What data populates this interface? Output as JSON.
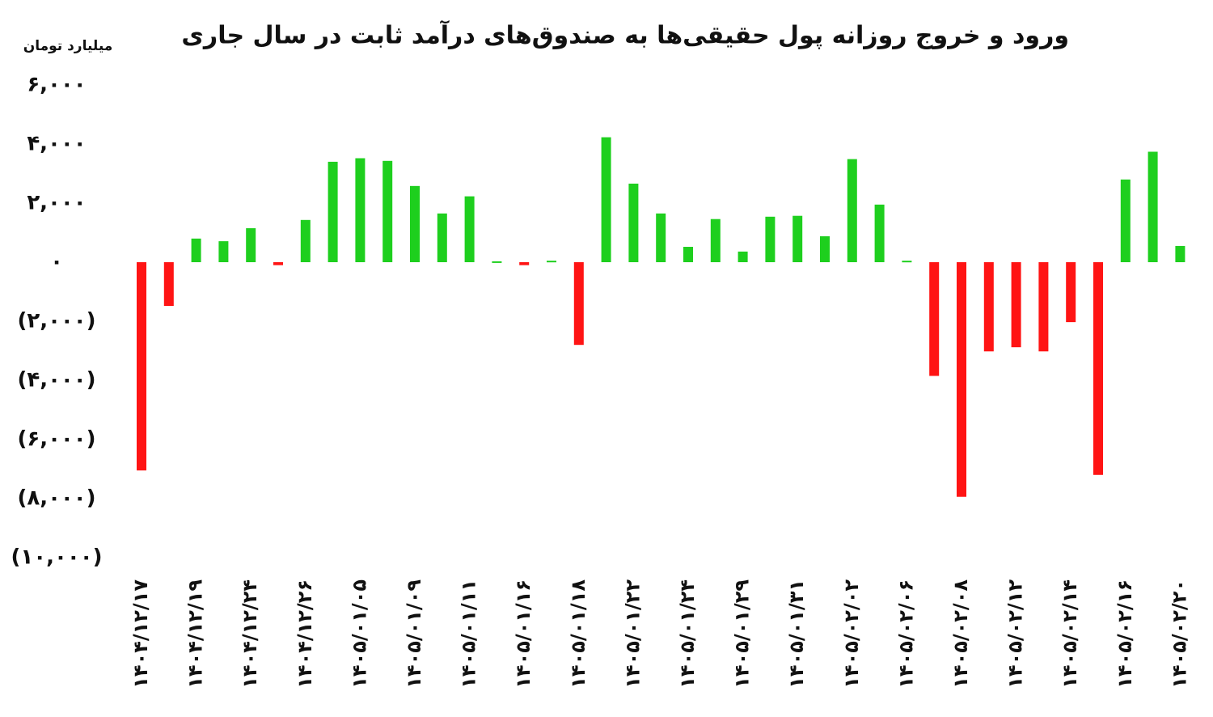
{
  "chart_data": {
    "type": "bar",
    "title": "ورود و خروج روزانه پول حقیقی‌ها به صندوق‌های درآمد ثابت در سال جاری",
    "y_label": "میلیارد تومان",
    "categories": [
      "۱۴۰۴/۱۲/۱۷",
      null,
      "۱۴۰۴/۱۲/۱۹",
      null,
      "۱۴۰۴/۱۲/۲۴",
      null,
      "۱۴۰۴/۱۲/۲۶",
      null,
      "۱۴۰۵/۰۱/۰۵",
      null,
      "۱۴۰۵/۰۱/۰۹",
      null,
      "۱۴۰۵/۰۱/۱۱",
      null,
      "۱۴۰۵/۰۱/۱۶",
      null,
      "۱۴۰۵/۰۱/۱۸",
      null,
      "۱۴۰۵/۰۱/۲۲",
      null,
      "۱۴۰۵/۰۱/۲۴",
      null,
      "۱۴۰۵/۰۱/۲۹",
      null,
      "۱۴۰۵/۰۱/۳۱",
      null,
      "۱۴۰۵/۰۲/۰۲",
      null,
      "۱۴۰۵/۰۲/۰۶",
      null,
      "۱۴۰۵/۰۲/۰۸",
      null,
      "۱۴۰۵/۰۲/۱۲",
      null,
      "۱۴۰۵/۰۲/۱۴",
      null,
      "۱۴۰۵/۰۲/۱۶",
      null,
      "۱۴۰۵/۰۲/۲۰"
    ],
    "values": [
      -7050,
      -1480,
      800,
      710,
      1150,
      -100,
      1430,
      3400,
      3520,
      3430,
      2580,
      1650,
      2230,
      30,
      -100,
      50,
      -2800,
      4230,
      2660,
      1650,
      520,
      1460,
      360,
      1540,
      1570,
      880,
      3490,
      1950,
      50,
      -3850,
      -7940,
      -3020,
      -2880,
      -3020,
      -2030,
      -7200,
      2800,
      3740,
      550
    ],
    "positive_color": "#1ecf1e",
    "negative_color": "#ff1414",
    "ylim": [
      -10000,
      6000
    ],
    "yticks": [
      {
        "value": -10000,
        "label": "(۱۰,۰۰۰)"
      },
      {
        "value": -8000,
        "label": "(۸,۰۰۰)"
      },
      {
        "value": -6000,
        "label": "(۶,۰۰۰)"
      },
      {
        "value": -4000,
        "label": "(۴,۰۰۰)"
      },
      {
        "value": -2000,
        "label": "(۲,۰۰۰)"
      },
      {
        "value": 0,
        "label": "۰"
      },
      {
        "value": 2000,
        "label": "۲,۰۰۰"
      },
      {
        "value": 4000,
        "label": "۴,۰۰۰"
      },
      {
        "value": 6000,
        "label": "۶,۰۰۰"
      }
    ],
    "grid": false
  }
}
